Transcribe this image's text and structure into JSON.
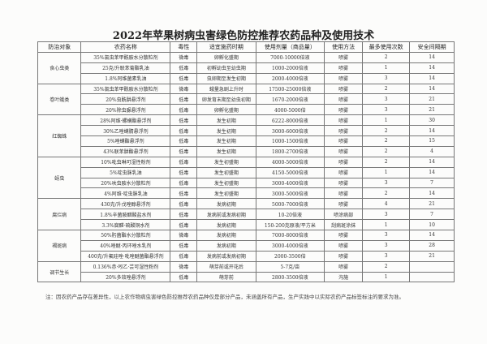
{
  "title": "2022年苹果树病虫害绿色防控推荐农药品种及使用技术",
  "headers": [
    "防治对象",
    "农药名称",
    "毒性",
    "适宜施药时期",
    "使用剂量（商品量）",
    "使用方法",
    "最多使用次数",
    "安全间隔期"
  ],
  "groups": [
    {
      "target": "食心虫类",
      "rows": [
        [
          "35%氯虫苯甲酰胺水分散粒剂",
          "微毒",
          "卵孵化盛期",
          "7000-10000倍液",
          "喷雾",
          "2",
          "14"
        ],
        [
          "25克/升联苯菊酯乳油",
          "低毒",
          "初孵幼虫至幼虫期",
          "1000-2000倍液",
          "喷雾",
          "1",
          "14"
        ],
        [
          "1.8%阿维菌素乳油",
          "低毒",
          "虫卵期至发生初期",
          "2000-4000倍液",
          "喷雾",
          "3",
          "14"
        ]
      ]
    },
    {
      "target": "卷叶蛾类",
      "rows": [
        [
          "35%氯虫苯甲酰胺水分散粒剂",
          "微毒",
          "蛾量急剧上升时",
          "17500-25000倍液",
          "喷雾",
          "2",
          "14"
        ],
        [
          "20%虫酰肼悬浮剂",
          "低毒",
          "卵发育末期至幼虫初期",
          "1670-2000倍液",
          "喷雾",
          "3",
          "21"
        ],
        [
          "20%除虫脲悬浮剂",
          "低毒",
          "卵孵化盛期",
          "4000-5000倍",
          "喷雾",
          "3",
          "21"
        ]
      ]
    },
    {
      "target": "红蜘蛛",
      "rows": [
        [
          "28%阿维·螺螨酯悬浮剂",
          "低毒",
          "发生初期",
          "6222-8000倍液",
          "喷雾",
          "1",
          "30"
        ],
        [
          "30%乙唑螨腈悬浮剂",
          "低毒",
          "发生初期",
          "3000-6000倍液",
          "喷雾",
          "2",
          "14"
        ],
        [
          "5%唑螨酯悬浮剂",
          "低毒",
          "发生初期",
          "1000-1500倍液",
          "喷雾",
          "2",
          "15"
        ],
        [
          "43%联苯肼酯悬浮剂",
          "低毒",
          "发生初期",
          "1800-2700倍液",
          "喷雾",
          "2",
          "4"
        ]
      ]
    },
    {
      "target": "蚜虫",
      "rows": [
        [
          "10%吡虫啉可湿性粉剂",
          "低毒",
          "发生初盛期",
          "4000-5000倍液",
          "喷雾",
          "2",
          "14"
        ],
        [
          "5%啶虫脒乳油",
          "低毒",
          "发生初盛期",
          "4150-5000倍液",
          "喷雾",
          "1",
          "14"
        ],
        [
          "20%呋虫胺水分散粒剂",
          "低毒",
          "发生初盛期",
          "3000-4000倍液",
          "喷雾",
          "3",
          "7"
        ],
        [
          "4%阿维·啶虫脒乳油",
          "低毒",
          "发生初盛期",
          "3000-5000倍液",
          "喷雾",
          "2",
          "14"
        ]
      ]
    },
    {
      "target": "腐烂病",
      "rows": [
        [
          "430克/升戊唑醇悬浮剂",
          "低毒",
          "发病初期",
          "5000-7000倍液",
          "喷雾",
          "4",
          "21"
        ],
        [
          "1.8%辛菌胺醋酸盐水剂",
          "低毒",
          "发病前或发病初期",
          "10-20倍液",
          "喷涂病部",
          "3",
          "7"
        ],
        [
          "3.3%腐醛·硫酸铜水剂",
          "低毒",
          "发病初期",
          "150-200克原液/平方米",
          "刮病斑涂抹",
          "1",
          "10"
        ]
      ]
    },
    {
      "target": "褐斑病",
      "rows": [
        [
          "50%肟菌酯水分散粒剂",
          "微毒",
          "发病初期",
          "7000-8000倍液",
          "喷雾",
          "3",
          "14"
        ],
        [
          "40%唑醚·丙环唑水乳剂",
          "低毒",
          "发病初期",
          "3000-4000倍液",
          "喷雾",
          "3",
          "28"
        ],
        [
          "400克/升氟硅唑·吡唑醚菌酯悬浮剂",
          "低毒",
          "发病前或发病初期",
          "2000-3500倍",
          "喷雾",
          "3",
          "21"
        ]
      ]
    },
    {
      "target": "调节生长",
      "rows": [
        [
          "0.136%赤·吲乙·芸可湿性粉剂",
          "微毒",
          "萌芽前或开花后",
          "5-7克/亩",
          "喷雾",
          "2",
          ""
        ],
        [
          "20%多效唑悬浮剂",
          "低毒",
          "萌芽前",
          "2800-3500倍液",
          "沟施",
          "1",
          ""
        ]
      ]
    }
  ],
  "note": "注：因农药产品存在差异性，以上农作物病虫害绿色防控推荐农药品种仅是部分产品，未涵盖所有产品，生产实践中以实际农药产品标签标注的要求为准。"
}
